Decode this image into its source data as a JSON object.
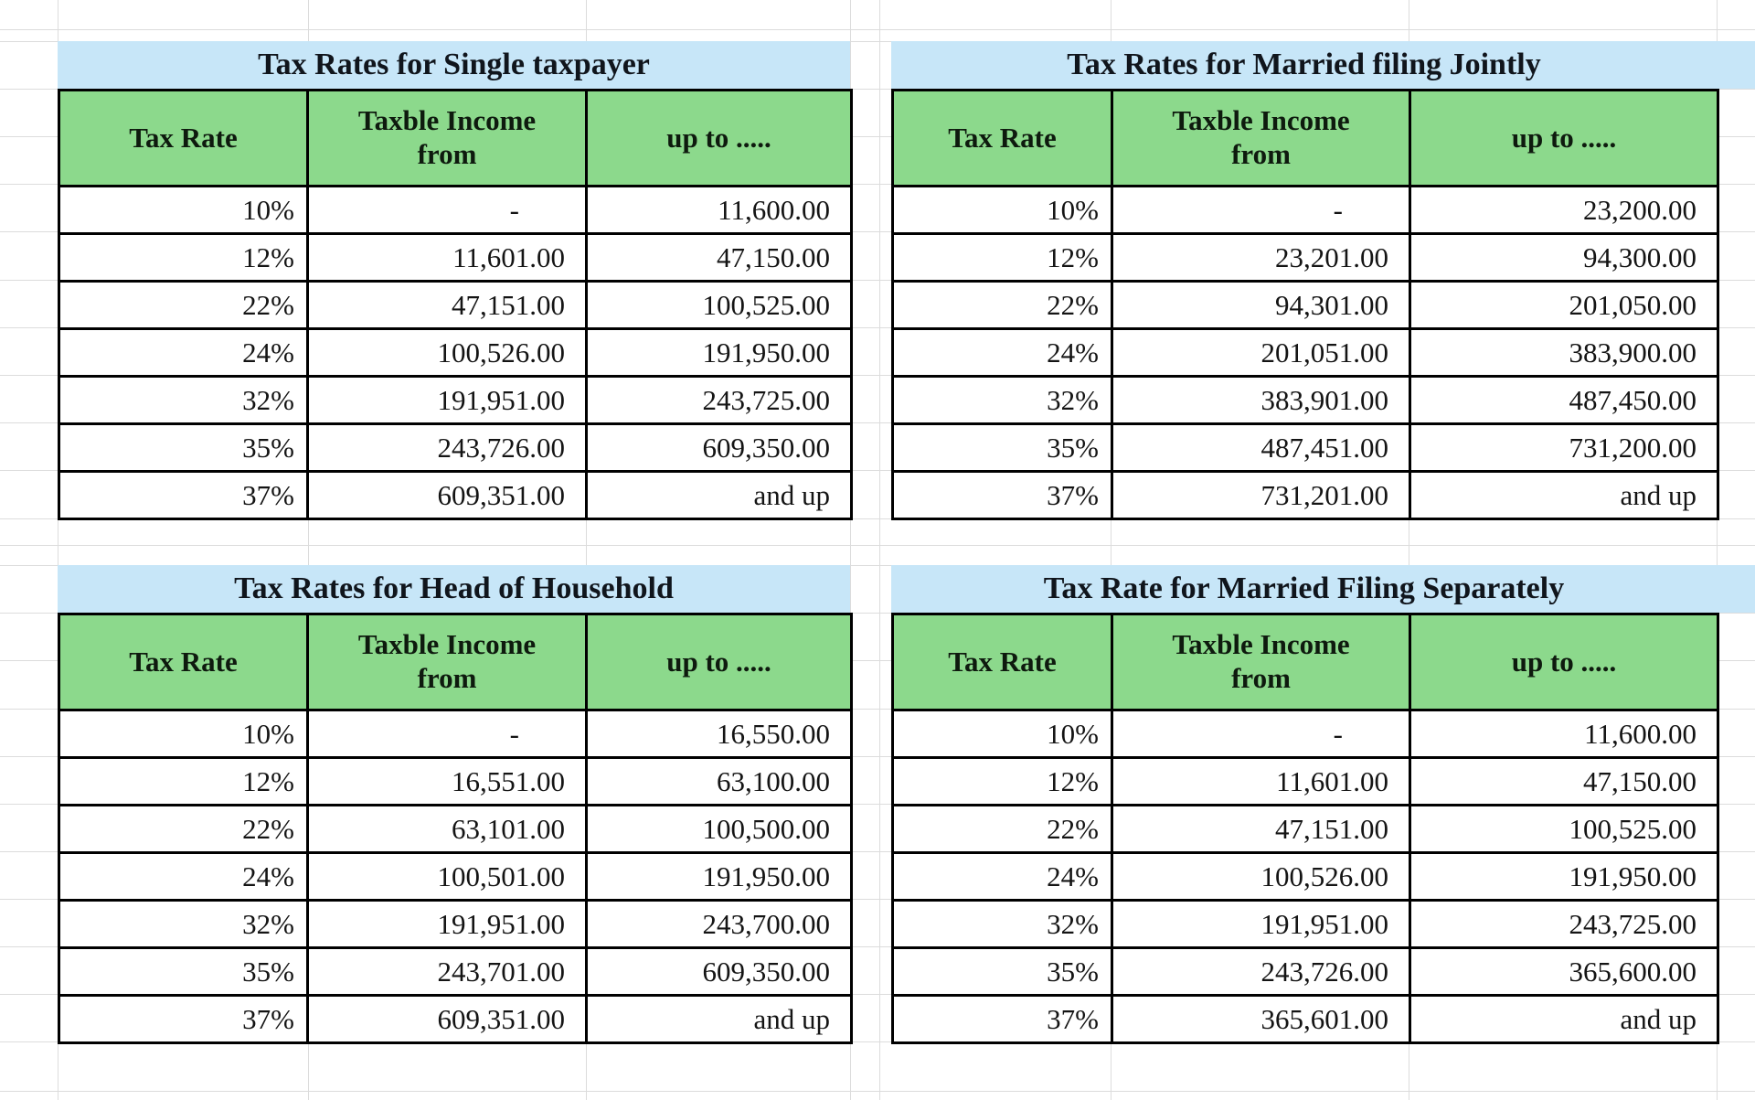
{
  "theme": {
    "title_bg": "#c7e6f8",
    "header_bg": "#8cd98c",
    "border_color": "#000000",
    "gridline_color": "#dcdcdc",
    "text_color": "#141414"
  },
  "tables": [
    {
      "name": "single",
      "title": "Tax Rates for Single taxpayer",
      "headers": [
        "Tax Rate",
        "Taxble Income from",
        "up to ....."
      ],
      "rows": [
        [
          "10%",
          "-",
          "11,600.00"
        ],
        [
          "12%",
          "11,601.00",
          "47,150.00"
        ],
        [
          "22%",
          "47,151.00",
          "100,525.00"
        ],
        [
          "24%",
          "100,526.00",
          "191,950.00"
        ],
        [
          "32%",
          "191,951.00",
          "243,725.00"
        ],
        [
          "35%",
          "243,726.00",
          "609,350.00"
        ],
        [
          "37%",
          "609,351.00",
          "and up"
        ]
      ]
    },
    {
      "name": "married-filing-jointly",
      "title": "Tax Rates for Married filing Jointly",
      "headers": [
        "Tax Rate",
        "Taxble Income from",
        "up to ....."
      ],
      "rows": [
        [
          "10%",
          "-",
          "23,200.00"
        ],
        [
          "12%",
          "23,201.00",
          "94,300.00"
        ],
        [
          "22%",
          "94,301.00",
          "201,050.00"
        ],
        [
          "24%",
          "201,051.00",
          "383,900.00"
        ],
        [
          "32%",
          "383,901.00",
          "487,450.00"
        ],
        [
          "35%",
          "487,451.00",
          "731,200.00"
        ],
        [
          "37%",
          "731,201.00",
          "and up"
        ]
      ]
    },
    {
      "name": "head-of-household",
      "title": "Tax Rates for Head of Household",
      "headers": [
        "Tax Rate",
        "Taxble Income from",
        "up to ....."
      ],
      "rows": [
        [
          "10%",
          "-",
          "16,550.00"
        ],
        [
          "12%",
          "16,551.00",
          "63,100.00"
        ],
        [
          "22%",
          "63,101.00",
          "100,500.00"
        ],
        [
          "24%",
          "100,501.00",
          "191,950.00"
        ],
        [
          "32%",
          "191,951.00",
          "243,700.00"
        ],
        [
          "35%",
          "243,701.00",
          "609,350.00"
        ],
        [
          "37%",
          "609,351.00",
          "and up"
        ]
      ]
    },
    {
      "name": "married-filing-separately",
      "title": "Tax Rate for Married Filing Separately",
      "headers": [
        "Tax Rate",
        "Taxble Income from",
        "up to ....."
      ],
      "rows": [
        [
          "10%",
          "-",
          "11,600.00"
        ],
        [
          "12%",
          "11,601.00",
          "47,150.00"
        ],
        [
          "22%",
          "47,151.00",
          "100,525.00"
        ],
        [
          "24%",
          "100,526.00",
          "191,950.00"
        ],
        [
          "32%",
          "191,951.00",
          "243,725.00"
        ],
        [
          "35%",
          "243,726.00",
          "365,600.00"
        ],
        [
          "37%",
          "365,601.00",
          "and up"
        ]
      ]
    }
  ]
}
